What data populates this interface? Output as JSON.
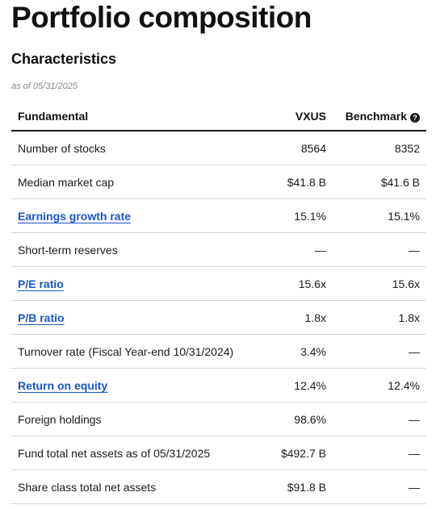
{
  "page": {
    "title": "Portfolio composition",
    "section_title": "Characteristics",
    "as_of": "as of 05/31/2025"
  },
  "table": {
    "headers": {
      "name": "Fundamental",
      "fund": "VXUS",
      "benchmark": "Benchmark",
      "help_icon": "question-circle-icon"
    },
    "rows": [
      {
        "label": "Number of stocks",
        "fund": "8564",
        "benchmark": "8352",
        "link": false
      },
      {
        "label": "Median market cap",
        "fund": "$41.8 B",
        "benchmark": "$41.6 B",
        "link": false
      },
      {
        "label": "Earnings growth rate",
        "fund": "15.1%",
        "benchmark": "15.1%",
        "link": true
      },
      {
        "label": "Short-term reserves",
        "fund": "—",
        "benchmark": "—",
        "link": false
      },
      {
        "label": "P/E ratio",
        "fund": "15.6x",
        "benchmark": "15.6x",
        "link": true
      },
      {
        "label": "P/B ratio",
        "fund": "1.8x",
        "benchmark": "1.8x",
        "link": true
      },
      {
        "label": "Turnover rate (Fiscal Year-end 10/31/2024)",
        "fund": "3.4%",
        "benchmark": "—",
        "link": false
      },
      {
        "label": "Return on equity",
        "fund": "12.4%",
        "benchmark": "12.4%",
        "link": true
      },
      {
        "label": "Foreign holdings",
        "fund": "98.6%",
        "benchmark": "—",
        "link": false
      },
      {
        "label": "Fund total net assets as of 05/31/2025",
        "fund": "$492.7 B",
        "benchmark": "—",
        "link": false
      },
      {
        "label": "Share class total net assets",
        "fund": "$91.8 B",
        "benchmark": "—",
        "link": false
      }
    ]
  },
  "colors": {
    "link": "#1a55c9",
    "text": "#1a1a1a",
    "divider": "#d4d4d4"
  }
}
